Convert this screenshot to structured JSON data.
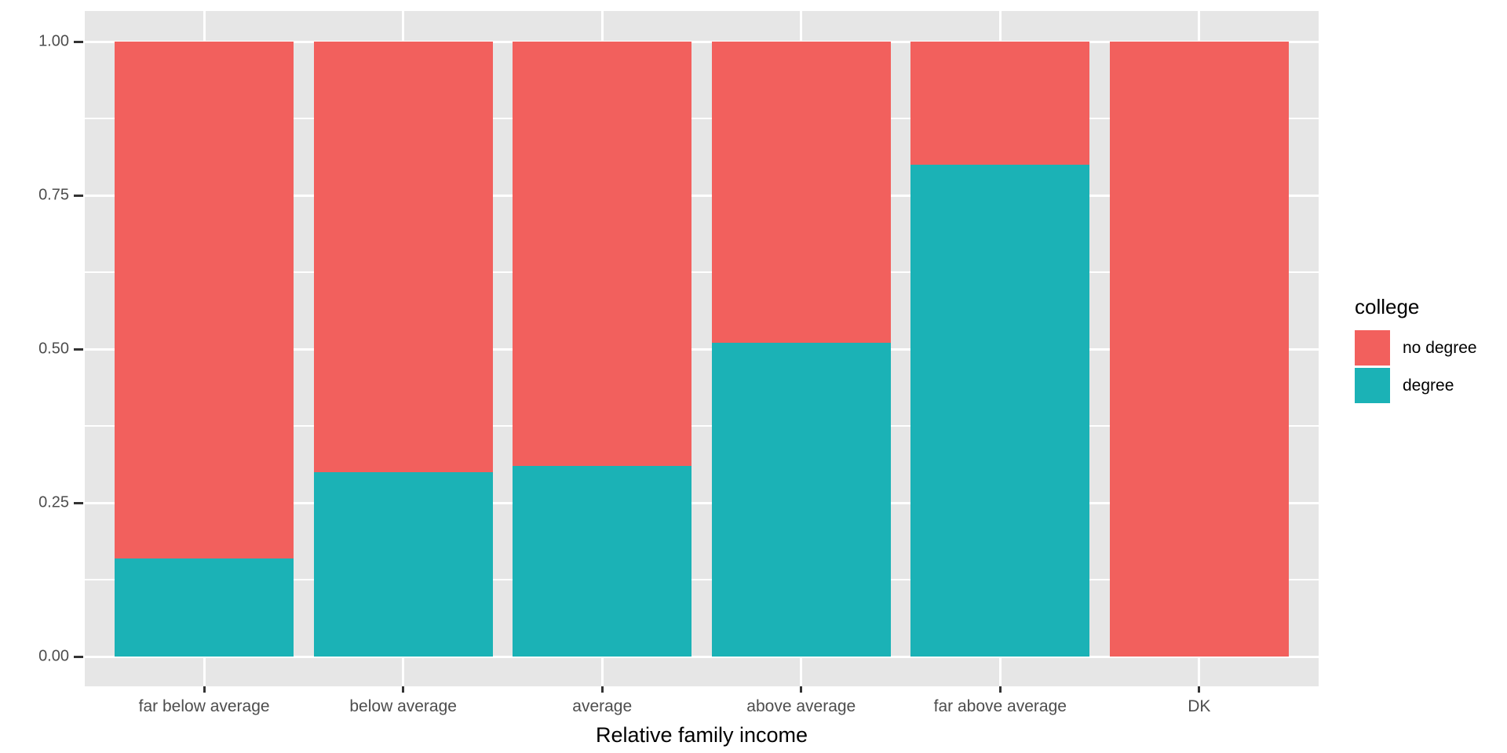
{
  "figure": {
    "background": "#FFFFFF",
    "panel_background": "#E6E6E6",
    "gridline_color": "#FFFFFF",
    "tick_mark_color": "#333333",
    "tick_label_color": "#4D4D4D"
  },
  "chart_data": {
    "type": "bar",
    "stacked": true,
    "normalized": true,
    "title": "",
    "xlabel": "Relative family income",
    "ylabel": "",
    "categories": [
      "far below average",
      "below average",
      "average",
      "above average",
      "far above average",
      "DK"
    ],
    "series": [
      {
        "name": "degree",
        "color": "#1BB2B6",
        "values": [
          0.16,
          0.3,
          0.31,
          0.51,
          0.8,
          0.0
        ]
      },
      {
        "name": "no degree",
        "color": "#F2605D",
        "values": [
          0.84,
          0.7,
          0.69,
          0.49,
          0.2,
          1.0
        ]
      }
    ],
    "stack_order_bottom_to_top": [
      "degree",
      "no degree"
    ],
    "ylim": [
      0,
      1
    ],
    "yticks": [
      {
        "value": 0.0,
        "label": "0.00"
      },
      {
        "value": 0.25,
        "label": "0.25"
      },
      {
        "value": 0.5,
        "label": "0.50"
      },
      {
        "value": 0.75,
        "label": "0.75"
      },
      {
        "value": 1.0,
        "label": "1.00"
      }
    ],
    "yminor": [
      0.125,
      0.375,
      0.625,
      0.875
    ],
    "grid": "on",
    "bar_width_fraction": 0.9,
    "legend": {
      "title": "college",
      "position": "right",
      "entries": [
        {
          "label": "no degree",
          "color": "#F2605D"
        },
        {
          "label": "degree",
          "color": "#1BB2B6"
        }
      ]
    }
  }
}
